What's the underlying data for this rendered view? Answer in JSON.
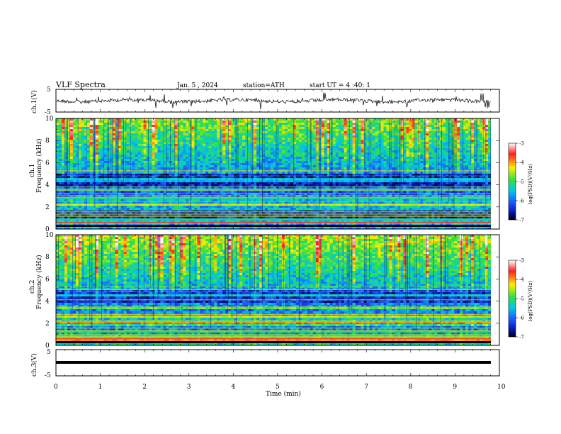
{
  "header": {
    "title": "VLF Spectra",
    "date": "Jan. 5 , 2024",
    "station": "station=ATH",
    "start": "start UT = 4 :40: 1"
  },
  "colorbar": {
    "label": "log(PSD)(V²/Hz)",
    "ticks": [
      "-3",
      "-4",
      "-5",
      "-6",
      "-7"
    ],
    "stops": [
      "#ffffff",
      "#ff2020",
      "#ffee00",
      "#30e040",
      "#00c8e8",
      "#2050ff",
      "#0010a0",
      "#000000"
    ]
  },
  "chart_data": [
    {
      "type": "line",
      "panel": "ch1-waveform",
      "ylabel": "ch.1(V)",
      "yticks": [
        "5",
        "-5"
      ],
      "ylim": [
        -5,
        5
      ],
      "xlim": [
        0,
        10
      ],
      "baseline": 0
    },
    {
      "type": "heatmap",
      "panel": "ch1-spectrogram",
      "ylabel_top": "ch.1",
      "ylabel": "Frequency (kHz)",
      "yticks": [
        "0",
        "2",
        "4",
        "6",
        "8",
        "10"
      ],
      "ylim": [
        0,
        10
      ],
      "xlim": [
        0,
        9.8
      ],
      "zlim": [
        -7,
        -3
      ],
      "bands_khz": [
        {
          "f": 0.3,
          "level": -3.6
        },
        {
          "f": 0.8,
          "level": -5.2
        },
        {
          "f": 2.2,
          "level": -4.4
        },
        {
          "f": 2.8,
          "level": -5.3
        },
        {
          "f": 3.5,
          "level": -5.4
        },
        {
          "f": 4.4,
          "level": -5.6
        }
      ]
    },
    {
      "type": "heatmap",
      "panel": "ch2-spectrogram",
      "ylabel_top": "ch.2",
      "ylabel": "Frequency (kHz)",
      "yticks": [
        "0",
        "2",
        "4",
        "6",
        "8",
        "10"
      ],
      "ylim": [
        0,
        10
      ],
      "xlim": [
        0,
        9.8
      ],
      "zlim": [
        -7,
        -3
      ],
      "bands_khz": [
        {
          "f": 0.4,
          "level": -4.0
        },
        {
          "f": 1.3,
          "level": -5.0
        },
        {
          "f": 2.0,
          "level": -3.9
        },
        {
          "f": 2.6,
          "level": -4.6
        },
        {
          "f": 3.4,
          "level": -4.8
        },
        {
          "f": 4.5,
          "level": -5.4
        }
      ]
    },
    {
      "type": "line",
      "panel": "ch3-waveform",
      "ylabel": "ch.3(V)",
      "yticks": [
        "5",
        "-5"
      ],
      "ylim": [
        -5,
        5
      ],
      "xlim": [
        0,
        10
      ],
      "baseline": 0
    }
  ],
  "xaxis": {
    "label": "Time (min)",
    "ticks": [
      "0",
      "1",
      "2",
      "3",
      "4",
      "5",
      "6",
      "7",
      "8",
      "9",
      "10"
    ]
  }
}
